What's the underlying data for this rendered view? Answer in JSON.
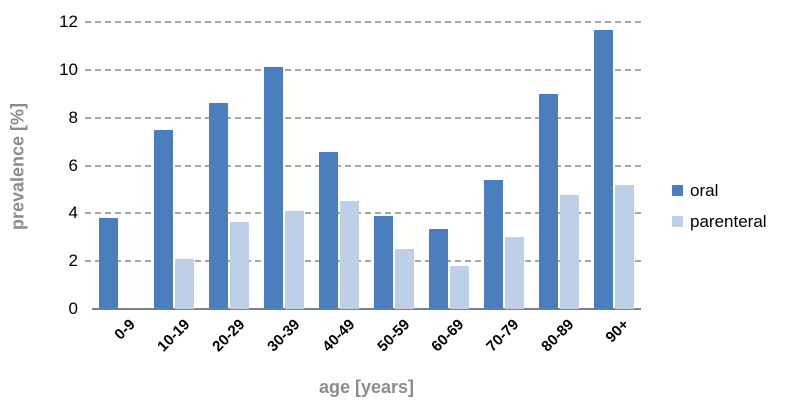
{
  "chart_data": {
    "type": "bar",
    "title": "",
    "categories": [
      "0-9",
      "10-19",
      "20-29",
      "30-39",
      "40-49",
      "50-59",
      "60-69",
      "70-79",
      "80-89",
      "90+"
    ],
    "series": [
      {
        "name": "oral",
        "color": "#4a7ebc",
        "values": [
          3.8,
          7.5,
          8.6,
          10.1,
          6.55,
          3.9,
          3.35,
          5.4,
          9.0,
          11.65
        ]
      },
      {
        "name": "parenteral",
        "color": "#bdd0e8",
        "values": [
          0,
          2.1,
          3.65,
          4.1,
          4.5,
          2.5,
          1.8,
          3.0,
          4.75,
          5.2
        ]
      }
    ],
    "xlabel": "age [years]",
    "ylabel": "prevalence [%]",
    "ylim": [
      0,
      12
    ],
    "ytick_step": 2,
    "yticks": [
      0,
      2,
      4,
      6,
      8,
      10,
      12
    ],
    "grid": "horizontal-dashed",
    "legend_position": "right"
  },
  "colors": {
    "gridline": "#a6a6a6",
    "axis_line": "#808080",
    "axis_title_text": "#8c8c8c",
    "tick_text": "#000000",
    "background": "#ffffff"
  }
}
